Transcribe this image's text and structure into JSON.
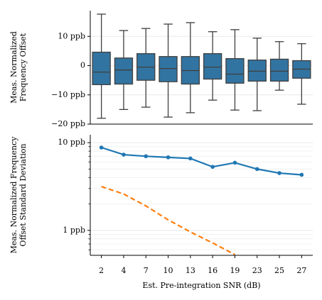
{
  "chart_data": [
    {
      "type": "box",
      "ylabel": [
        "Meas. Normalized",
        "Frequency Offset"
      ],
      "categories": [
        "2",
        "4",
        "7",
        "10",
        "13",
        "16",
        "19",
        "23",
        "25",
        "27"
      ],
      "color": "#3274a1",
      "boxes": [
        {
          "whislo": -18,
          "q1": -6.5,
          "med": -2.2,
          "q3": 4.6,
          "whishi": 17.6
        },
        {
          "whislo": -15,
          "q1": -6.3,
          "med": -1.5,
          "q3": 2.6,
          "whishi": 12
        },
        {
          "whislo": -14.2,
          "q1": -5,
          "med": -0.5,
          "q3": 4.1,
          "whishi": 12.7
        },
        {
          "whislo": -17.6,
          "q1": -5.5,
          "med": -1,
          "q3": 3.1,
          "whishi": 14.2
        },
        {
          "whislo": -16.1,
          "q1": -6.3,
          "med": -1.7,
          "q3": 3.1,
          "whishi": 14.7
        },
        {
          "whislo": -11.8,
          "q1": -4.6,
          "med": -0.5,
          "q3": 4.1,
          "whishi": 11.6
        },
        {
          "whislo": -15.2,
          "q1": -6,
          "med": -2.9,
          "q3": 2.4,
          "whishi": 12.3
        },
        {
          "whislo": -15.4,
          "q1": -5.3,
          "med": -1.9,
          "q3": 1.9,
          "whishi": 9.4
        },
        {
          "whislo": -8.4,
          "q1": -5.3,
          "med": -1.9,
          "q3": 2.2,
          "whishi": 8.2
        },
        {
          "whislo": -13.2,
          "q1": -4.3,
          "med": -1.2,
          "q3": 1.7,
          "whishi": 7.5
        }
      ],
      "ylim": [
        -20,
        18.8
      ],
      "yticks": [
        {
          "value": -20,
          "label": "−20 ppb"
        },
        {
          "value": -10,
          "label": "−10 ppb"
        },
        0,
        {
          "value": 10,
          "label": "10 ppb"
        }
      ],
      "grid": true
    },
    {
      "type": "line",
      "ylabel": [
        "Meas. Normalized Frequency",
        "Offset Standard Deviation"
      ],
      "xlabel": "Est. Pre-integration SNR (dB)",
      "categories": [
        "2",
        "4",
        "7",
        "10",
        "13",
        "16",
        "19",
        "23",
        "25",
        "27"
      ],
      "log_y": true,
      "series": [
        {
          "color": "#1f77b4",
          "linestyle": "solid",
          "values": [
            8.8,
            7.3,
            7.0,
            6.8,
            6.6,
            5.3,
            5.9,
            5.0,
            4.5,
            4.3
          ]
        },
        {
          "color": "#ff7f0e",
          "linestyle": "dashed",
          "values": [
            3.16,
            2.6,
            1.9,
            1.32,
            0.96,
            0.72,
            0.53,
            null,
            null,
            null
          ]
        }
      ],
      "ylim": [
        0.52,
        12.3
      ],
      "yticks": [
        {
          "value": 1,
          "label": "1 ppb"
        },
        {
          "value": 10,
          "label": "10 ppb"
        }
      ],
      "grid": true
    }
  ]
}
